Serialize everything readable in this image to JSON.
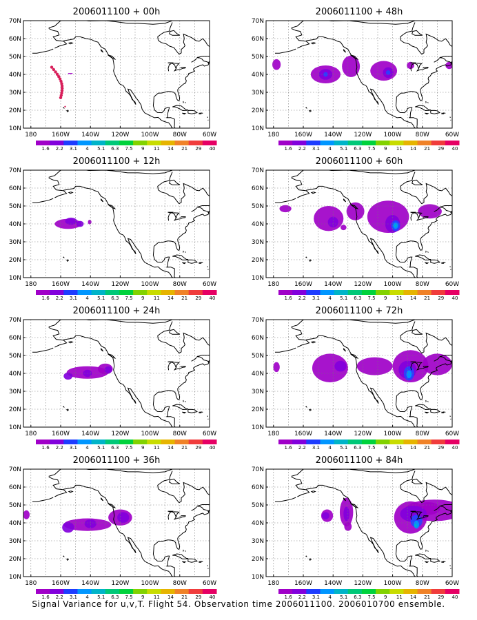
{
  "figure": {
    "caption": "Signal Variance for u,v,T. Flight 54. Observation time 2006011100. 2006010700 ensemble.",
    "lat_labels": [
      "70N",
      "60N",
      "50N",
      "40N",
      "30N",
      "20N",
      "10N"
    ],
    "lon_labels": [
      "180",
      "160W",
      "140W",
      "120W",
      "100W",
      "80W",
      "60W"
    ],
    "lat_range": [
      10,
      70
    ],
    "lon_range": [
      -185,
      -60
    ],
    "grid": "dotted",
    "colorbar": {
      "labels": [
        "1.6",
        "2.2",
        "3.1",
        "4",
        "5.1",
        "6.3",
        "7.5",
        "9",
        "11",
        "14",
        "21",
        "29",
        "40"
      ],
      "colors": [
        "#a000c8",
        "#8200dc",
        "#1e3cff",
        "#0096ff",
        "#00b4c8",
        "#00c878",
        "#00d23c",
        "#82d200",
        "#c8dc00",
        "#e6b400",
        "#f08228",
        "#f03c3c",
        "#e60064"
      ]
    },
    "panels": [
      {
        "title": "2006011100 + 00h",
        "features": [
          {
            "type": "dots",
            "note": "track"
          }
        ]
      },
      {
        "title": "2006011100 + 12h"
      },
      {
        "title": "2006011100 + 24h"
      },
      {
        "title": "2006011100 + 36h"
      },
      {
        "title": "2006011100 + 48h"
      },
      {
        "title": "2006011100 + 60h"
      },
      {
        "title": "2006011100 + 72h"
      },
      {
        "title": "2006011100 + 84h"
      }
    ]
  }
}
